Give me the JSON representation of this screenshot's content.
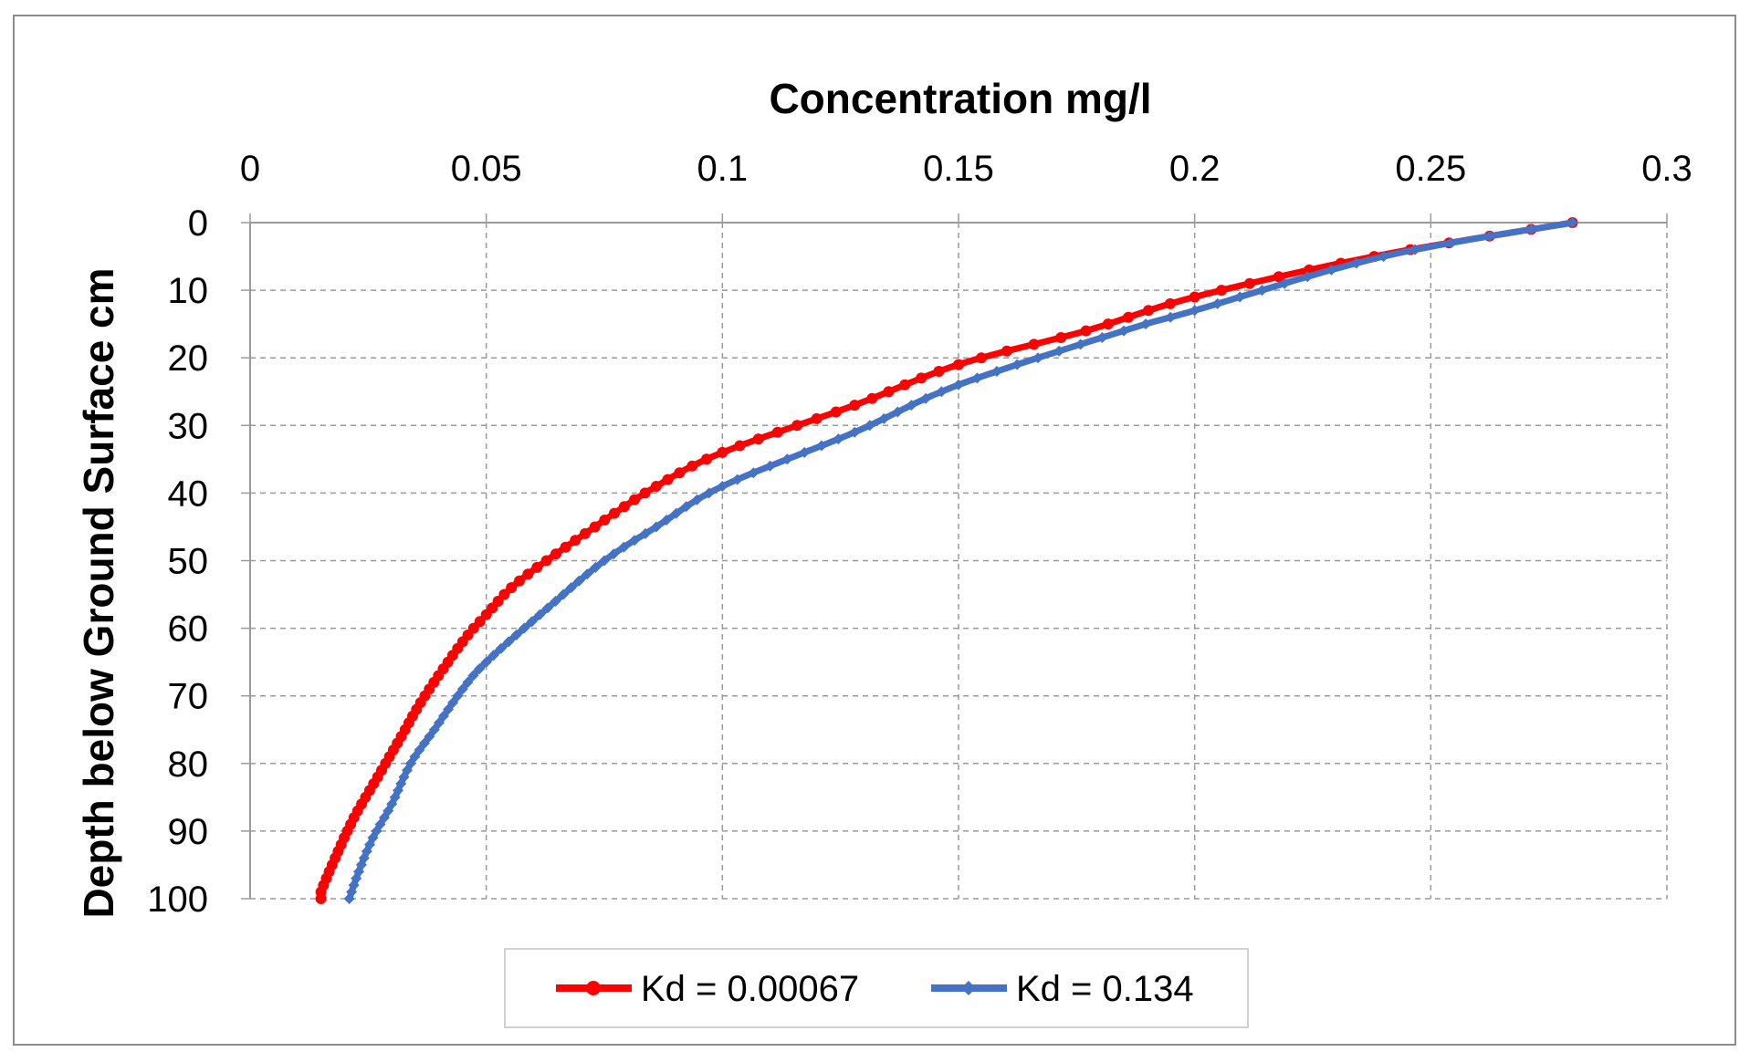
{
  "chart_data": {
    "type": "line",
    "title": "Concentration mg/l",
    "xlabel": "Concentration mg/l",
    "ylabel": "Depth below Ground Surface cm",
    "x_axis_position": "top",
    "y_axis_inverted": true,
    "xlim": [
      0,
      0.3
    ],
    "ylim": [
      0,
      100
    ],
    "x_ticks": [
      "0",
      "0.05",
      "0.1",
      "0.15",
      "0.2",
      "0.25",
      "0.3"
    ],
    "x_tick_values": [
      0,
      0.05,
      0.1,
      0.15,
      0.2,
      0.25,
      0.3
    ],
    "y_ticks": [
      "0",
      "10",
      "20",
      "30",
      "40",
      "50",
      "60",
      "70",
      "80",
      "90",
      "100"
    ],
    "y_tick_values": [
      0,
      10,
      20,
      30,
      40,
      50,
      60,
      70,
      80,
      90,
      100
    ],
    "grid": true,
    "legend_position": "bottom",
    "series": [
      {
        "name": "Kd = 0.00067",
        "color": "#ff0000",
        "marker": "circle",
        "points": [
          [
            0.28,
            0
          ],
          [
            0.238,
            5
          ],
          [
            0.2,
            11
          ],
          [
            0.177,
            16
          ],
          [
            0.15,
            21
          ],
          [
            0.128,
            27
          ],
          [
            0.1,
            34
          ],
          [
            0.086,
            39
          ],
          [
            0.073,
            45
          ],
          [
            0.057,
            53
          ],
          [
            0.05,
            58
          ],
          [
            0.045,
            62
          ],
          [
            0.037,
            70
          ],
          [
            0.032,
            76
          ],
          [
            0.027,
            82
          ],
          [
            0.022,
            88
          ],
          [
            0.018,
            94
          ],
          [
            0.015,
            99
          ],
          [
            0.015,
            100
          ]
        ]
      },
      {
        "name": "Kd = 0.134",
        "color": "#4472c4",
        "marker": "diamond",
        "points": [
          [
            0.28,
            0
          ],
          [
            0.24,
            5
          ],
          [
            0.2,
            13
          ],
          [
            0.185,
            16
          ],
          [
            0.15,
            24
          ],
          [
            0.128,
            31
          ],
          [
            0.1,
            39
          ],
          [
            0.086,
            45
          ],
          [
            0.075,
            50
          ],
          [
            0.063,
            57
          ],
          [
            0.05,
            65
          ],
          [
            0.045,
            69
          ],
          [
            0.039,
            75
          ],
          [
            0.034,
            80
          ],
          [
            0.03,
            86
          ],
          [
            0.026,
            91
          ],
          [
            0.023,
            96
          ],
          [
            0.021,
            100
          ]
        ]
      }
    ]
  }
}
